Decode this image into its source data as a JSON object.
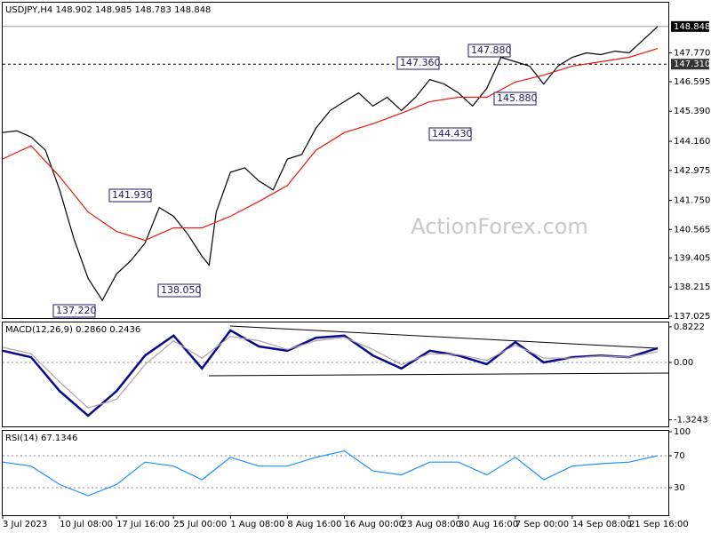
{
  "chart_data": [
    {
      "type": "line",
      "title": "USDJPY,H4  148.902 148.985 148.783 148.848",
      "watermark": "ActionForex.com",
      "series": [
        {
          "color": "#000000",
          "x": [
            0,
            8,
            16,
            24,
            32,
            40,
            48,
            56,
            64,
            72,
            80,
            88,
            96,
            104,
            112,
            116,
            120,
            128,
            136,
            144,
            152,
            160,
            168,
            176,
            184,
            192,
            200,
            208,
            216,
            224,
            232,
            240,
            248,
            256,
            264,
            272,
            280,
            288,
            296,
            304,
            312,
            320,
            328,
            336,
            344,
            352,
            360,
            368
          ],
          "values": [
            144.52,
            144.59,
            144.34,
            143.8,
            142.18,
            140.19,
            138.57,
            137.67,
            138.75,
            139.29,
            140.01,
            141.46,
            141.1,
            140.37,
            139.47,
            139.11,
            141.28,
            142.9,
            143.08,
            142.54,
            142.18,
            143.44,
            143.62,
            144.7,
            145.42,
            145.78,
            146.14,
            145.6,
            145.96,
            145.42,
            145.96,
            146.68,
            146.5,
            146.14,
            145.6,
            146.32,
            147.59,
            147.41,
            147.23,
            146.5,
            147.23,
            147.59,
            147.77,
            147.7,
            147.84,
            147.77,
            148.31,
            148.85
          ]
        },
        {
          "color": "#e8190e",
          "x": [
            0,
            16,
            32,
            48,
            64,
            80,
            96,
            112,
            128,
            144,
            160,
            176,
            192,
            208,
            224,
            240,
            256,
            272,
            288,
            304,
            320,
            336,
            352,
            368
          ],
          "values": [
            143.44,
            143.98,
            142.72,
            141.28,
            140.48,
            140.12,
            140.63,
            140.63,
            141.1,
            141.71,
            142.36,
            143.8,
            144.52,
            144.88,
            145.31,
            145.78,
            145.96,
            145.96,
            146.58,
            146.86,
            147.23,
            147.41,
            147.59,
            147.95
          ]
        }
      ],
      "annotations": [
        "147.880",
        "147.360",
        "145.880",
        "144.430",
        "141.930",
        "138.050",
        "137.220"
      ],
      "last_price": {
        "value": 148.848,
        "label": "148.848"
      },
      "hline": {
        "value": 147.31,
        "label": "147.310"
      },
      "xlim": [
        0,
        374
      ],
      "ylim": [
        136.95,
        149.82
      ],
      "yticks": [
        {
          "value": 147.77,
          "label": "147.770"
        },
        {
          "value": 146.595,
          "label": "146.595"
        },
        {
          "value": 145.39,
          "label": "145.390"
        },
        {
          "value": 144.16,
          "label": "144.160"
        },
        {
          "value": 142.975,
          "label": "142.975"
        },
        {
          "value": 141.75,
          "label": "141.750"
        },
        {
          "value": 140.565,
          "label": "140.565"
        },
        {
          "value": 139.405,
          "label": "139.405"
        },
        {
          "value": 138.215,
          "label": "138.215"
        },
        {
          "value": 137.025,
          "label": "137.025"
        }
      ]
    },
    {
      "type": "line",
      "title": "MACD(12,26,9) 0.2860 0.2436",
      "x": [
        0,
        16,
        32,
        48,
        64,
        80,
        96,
        112,
        128,
        144,
        160,
        176,
        192,
        208,
        224,
        240,
        256,
        272,
        288,
        304,
        320,
        336,
        352,
        368
      ],
      "series": [
        {
          "color": "#0a0a8c",
          "values": [
            0.27,
            0.12,
            -0.66,
            -1.23,
            -0.66,
            0.16,
            0.62,
            -0.14,
            0.74,
            0.37,
            0.27,
            0.57,
            0.62,
            0.16,
            -0.14,
            0.27,
            0.16,
            -0.04,
            0.47,
            0.0,
            0.12,
            0.16,
            0.12,
            0.33
          ]
        },
        {
          "color": "#b0a0a8",
          "values": [
            0.35,
            0.2,
            -0.45,
            -1.05,
            -0.85,
            -0.05,
            0.5,
            0.1,
            0.6,
            0.5,
            0.3,
            0.5,
            0.58,
            0.3,
            -0.05,
            0.2,
            0.18,
            0.05,
            0.4,
            0.1,
            0.1,
            0.15,
            0.12,
            0.25
          ]
        }
      ],
      "levels": [
        0
      ],
      "xlim": [
        0,
        374
      ],
      "ylim": [
        -1.476,
        0.943
      ],
      "yticks": [
        0.8222,
        {
          "value": 0,
          "label": "0.00"
        },
        -1.3243
      ]
    },
    {
      "type": "line",
      "title": "RSI(14) 67.1346",
      "x": [
        0,
        16,
        32,
        48,
        64,
        80,
        96,
        112,
        128,
        144,
        160,
        176,
        192,
        208,
        224,
        240,
        256,
        272,
        288,
        304,
        320,
        336,
        352,
        368
      ],
      "series": [
        {
          "color": "#1e90ff",
          "values": [
            62,
            57,
            34,
            20,
            34,
            62,
            57,
            40,
            68,
            57,
            57,
            68,
            76,
            51,
            46,
            62,
            62,
            46,
            68,
            40,
            57,
            60,
            62,
            70
          ]
        }
      ],
      "levels": [
        70,
        30
      ],
      "xlim": [
        0,
        374
      ],
      "ylim": [
        -4.4,
        102.2
      ],
      "yticks": [
        100,
        70,
        30
      ],
      "xticks": [
        {
          "value": 0,
          "label": "3 Jul 2023"
        },
        {
          "value": 32,
          "label": "10 Jul 08:00"
        },
        {
          "value": 64,
          "label": "17 Jul 16:00"
        },
        {
          "value": 96,
          "label": "25 Jul 00:00"
        },
        {
          "value": 128,
          "label": "1 Aug 08:00"
        },
        {
          "value": 160,
          "label": "8 Aug 16:00"
        },
        {
          "value": 192,
          "label": "16 Aug 00:00"
        },
        {
          "value": 224,
          "label": "23 Aug 08:00"
        },
        {
          "value": 256,
          "label": "30 Aug 16:00"
        },
        {
          "value": 288,
          "label": "7 Sep 00:00"
        },
        {
          "value": 320,
          "label": "14 Sep 08:00"
        },
        {
          "value": 352,
          "label": "21 Sep 16:00"
        }
      ]
    }
  ]
}
